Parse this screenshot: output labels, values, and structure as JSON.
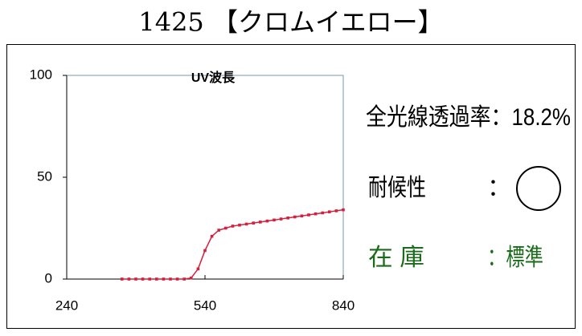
{
  "header": {
    "title": "1425 【クロムイエロー】"
  },
  "chart_data": {
    "type": "line",
    "x_label": "UV波長",
    "x": [
      360,
      375,
      390,
      405,
      420,
      435,
      450,
      465,
      480,
      495,
      510,
      525,
      540,
      555,
      570,
      585,
      600,
      615,
      630,
      645,
      660,
      675,
      690,
      705,
      720,
      735,
      750,
      765,
      780,
      795,
      810,
      825,
      840
    ],
    "series": [
      {
        "name": "UV",
        "color": "#d4203c",
        "values": [
          0,
          0,
          0,
          0,
          0,
          0,
          0,
          0,
          0,
          0,
          0.5,
          5,
          14,
          21,
          24,
          25,
          26,
          26.5,
          27,
          27.5,
          28,
          28.5,
          29,
          29.5,
          30,
          30.5,
          31,
          31.5,
          32,
          32.5,
          33,
          33.5,
          34
        ]
      }
    ],
    "xlim": [
      240,
      840
    ],
    "xticks": [
      240,
      540,
      840
    ],
    "ylim": [
      0,
      100
    ],
    "yticks": [
      0,
      50,
      100
    ]
  },
  "info": {
    "transmittance": "全光線透過率：18.2%",
    "weather_label": "耐候性",
    "weather_colon": "：",
    "stock_label": "在 庫",
    "stock_value": "：標準"
  }
}
